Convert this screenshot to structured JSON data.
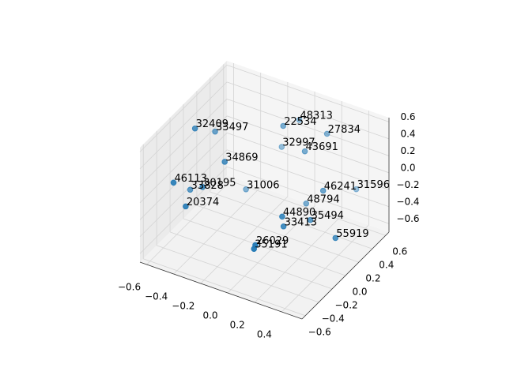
{
  "chart_data": {
    "type": "scatter3d",
    "color": "#1f77b4",
    "grid": true,
    "xlim": [
      -0.65,
      0.55
    ],
    "ylim": [
      -0.65,
      0.65
    ],
    "zlim": [
      -0.7,
      0.65
    ],
    "xticks": [
      {
        "value": -0.6,
        "label": "−0.6"
      },
      {
        "value": -0.4,
        "label": "−0.4"
      },
      {
        "value": -0.2,
        "label": "−0.2"
      },
      {
        "value": 0,
        "label": "0.0"
      },
      0.2,
      0.4
    ],
    "yticks": [
      {
        "value": -0.6,
        "label": "−0.6"
      },
      {
        "value": -0.4,
        "label": "−0.4"
      },
      {
        "value": -0.2,
        "label": "−0.2"
      },
      {
        "value": 0,
        "label": "0.0"
      },
      0.2,
      0.4,
      0.6
    ],
    "zticks": [
      {
        "value": -0.6,
        "label": "−0.6"
      },
      {
        "value": -0.4,
        "label": "−0.4"
      },
      {
        "value": -0.2,
        "label": "−0.2"
      },
      {
        "value": 0,
        "label": "0.0"
      },
      0.2,
      0.4,
      0.6
    ],
    "labels": [
      "32409",
      "33497",
      "22534",
      "48313",
      "27834",
      "32997",
      "43691",
      "34869",
      "46113",
      "33828",
      "30195",
      "31006",
      "46241",
      "31596",
      "48794",
      "20374",
      "44890",
      "35494",
      "33413",
      "55919",
      "26029",
      "35191"
    ],
    "x": [
      -0.5,
      -0.48,
      -0.04,
      -0.05,
      0.22,
      -0.18,
      0.12,
      -0.28,
      -0.53,
      -0.6,
      -0.38,
      -0.38,
      0.32,
      0.34,
      0.13,
      -0.44,
      0.21,
      0.29,
      0.22,
      0.54,
      0.14,
      0.13
    ],
    "y": [
      -0.13,
      0.13,
      0.26,
      0.52,
      0.39,
      0.52,
      0.26,
      -0.13,
      -0.39,
      0.0,
      -0.26,
      0.39,
      0.13,
      0.585,
      0.26,
      -0.39,
      -0.26,
      0.0,
      -0.26,
      -0.13,
      -0.52,
      -0.52
    ],
    "z": [
      0.55,
      0.32,
      0.53,
      0.39,
      0.48,
      0.0,
      0.32,
      0.28,
      0.1,
      -0.33,
      0.03,
      -0.51,
      0.07,
      -0.26,
      -0.29,
      -0.13,
      0.01,
      -0.19,
      -0.1,
      -0.16,
      -0.16,
      -0.21
    ]
  }
}
